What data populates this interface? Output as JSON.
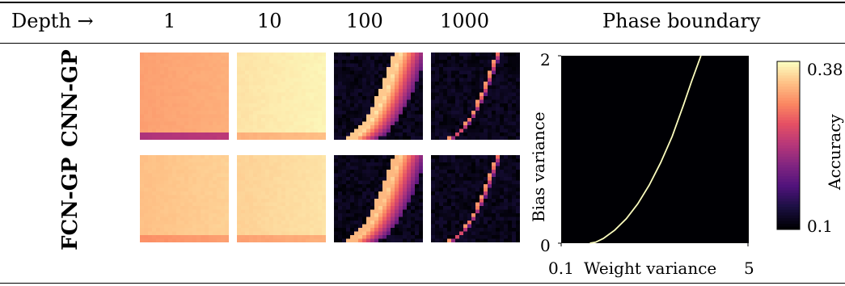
{
  "header": {
    "depth_label": "Depth →",
    "depths": [
      "1",
      "10",
      "100",
      "1000"
    ],
    "phase_title": "Phase boundary"
  },
  "rows": [
    {
      "label": "CNN-GP"
    },
    {
      "label": "FCN-GP"
    }
  ],
  "colors": {
    "colormap": "magma",
    "rule": "#000000"
  },
  "chart_data": [
    {
      "type": "heatmap",
      "description_source": "accuracy grids over weight variance (x) and bias variance (y), per depth and architecture",
      "colormap": "magma",
      "value_range": [
        0.1,
        0.38
      ],
      "panels": [
        {
          "row": "CNN-GP",
          "depth": "1",
          "accuracy_level": 0.33
        },
        {
          "row": "CNN-GP",
          "depth": "10",
          "accuracy_level": 0.37
        },
        {
          "row": "CNN-GP",
          "depth": "100",
          "accuracy_level": 0.37
        },
        {
          "row": "CNN-GP",
          "depth": "1000",
          "accuracy_level": 0.34
        },
        {
          "row": "FCN-GP",
          "depth": "1",
          "accuracy_level": 0.35
        },
        {
          "row": "FCN-GP",
          "depth": "10",
          "accuracy_level": 0.36
        },
        {
          "row": "FCN-GP",
          "depth": "100",
          "accuracy_level": 0.36
        },
        {
          "row": "FCN-GP",
          "depth": "1000",
          "accuracy_level": 0.34
        }
      ]
    },
    {
      "type": "line",
      "title": "Phase boundary",
      "xlabel": "Weight variance",
      "ylabel": "Bias variance",
      "xlim": [
        0.1,
        5
      ],
      "ylim": [
        0,
        2
      ],
      "x_ticks": [
        "0.1",
        "5"
      ],
      "y_ticks": [
        "0",
        "2"
      ],
      "boundary": {
        "x": [
          0.85,
          1.0,
          1.2,
          1.5,
          1.8,
          2.1,
          2.4,
          2.7,
          3.0,
          3.3,
          3.5,
          3.75
        ],
        "y": [
          0.0,
          0.01,
          0.05,
          0.14,
          0.26,
          0.42,
          0.62,
          0.86,
          1.14,
          1.48,
          1.72,
          2.0
        ]
      },
      "colorbar": {
        "label": "Accuracy",
        "min": 0.1,
        "max": 0.38,
        "tick_labels": [
          "0.38",
          "0.1"
        ]
      }
    }
  ]
}
